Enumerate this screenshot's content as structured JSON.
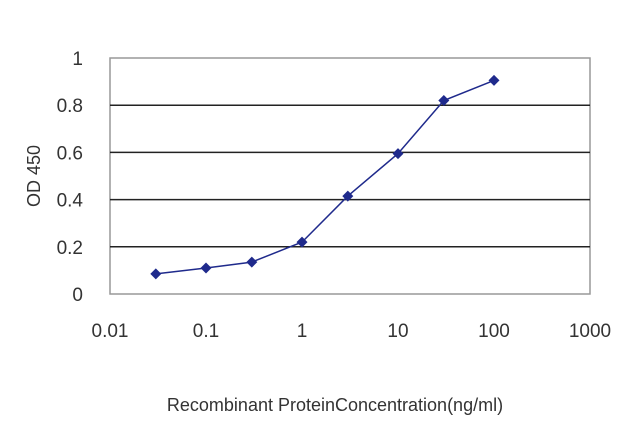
{
  "chart_data": {
    "type": "line",
    "xscale": "log",
    "xlim": [
      0.01,
      1000
    ],
    "ylim": [
      0,
      1
    ],
    "x_ticks": [
      "0.01",
      "0.1",
      "1",
      "10",
      "100",
      "1000"
    ],
    "y_ticks": [
      "0",
      "0.2",
      "0.4",
      "0.6",
      "0.8",
      "1"
    ],
    "xlabel": "Recombinant ProteinConcentration(ng/ml)",
    "ylabel": "OD 450",
    "grid": "horizontal",
    "legend": "none",
    "series": [
      {
        "x": [
          0.03,
          0.1,
          0.3,
          1,
          3,
          10,
          30,
          100
        ],
        "y": [
          0.085,
          0.11,
          0.135,
          0.22,
          0.415,
          0.595,
          0.82,
          0.905
        ],
        "color": "#1f2a8c",
        "marker": "diamond"
      }
    ]
  }
}
